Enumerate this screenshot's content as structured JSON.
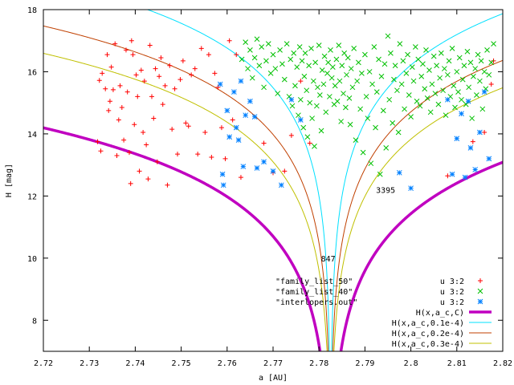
{
  "chart_data": {
    "type": "scatter",
    "title": "",
    "xlabel": "a [AU]",
    "ylabel": "H [mag]",
    "xlim": [
      2.72,
      2.82
    ],
    "ylim": [
      7,
      18
    ],
    "grid": false,
    "legend_position": "bottom-right",
    "x_ticks": [
      "2.72",
      "2.73",
      "2.74",
      "2.75",
      "2.76",
      "2.77",
      "2.78",
      "2.79",
      "2.8",
      "2.81",
      "2.82"
    ],
    "y_ticks": [
      "8",
      "10",
      "12",
      "14",
      "16",
      "18"
    ],
    "legend": [
      {
        "label": "u 3:2",
        "color": "#ff0000",
        "marker": "plus"
      },
      {
        "label": "u 3:2",
        "color": "#00c000",
        "marker": "cross"
      },
      {
        "label": "u 3:2",
        "color": "#0080ff",
        "marker": "star"
      },
      {
        "label": "H(x,a_c,C)",
        "color": "#c000c0",
        "marker": "line"
      },
      {
        "label": "H(x,a_c,0.1e-4)",
        "color": "#00e0ff",
        "marker": "line"
      },
      {
        "label": "H(x,a_c,0.2e-4)",
        "color": "#c04000",
        "marker": "line"
      },
      {
        "label": "H(x,a_c,0.3e-4)",
        "color": "#c0c000",
        "marker": "line"
      }
    ],
    "file_labels": [
      "\"family_list_50\"",
      "\"family_list_40\"",
      "\"interlopers.out\""
    ],
    "annotations": [
      {
        "text": "847",
        "x": 2.782,
        "y": 10.0
      },
      {
        "text": "3395",
        "x": 2.7945,
        "y": 12.2
      }
    ],
    "curves": {
      "center_a": 2.7825,
      "magenta_C": 9.05e-05,
      "cyan_C": 1e-05,
      "orange_C": 2e-05,
      "yellow_C": 3e-05
    },
    "series": [
      {
        "name": "u 3:2",
        "color": "#ff0000",
        "marker": "plus",
        "points": [
          [
            2.7318,
            13.75
          ],
          [
            2.7325,
            13.45
          ],
          [
            2.7322,
            15.72
          ],
          [
            2.7328,
            15.95
          ],
          [
            2.7335,
            15.45
          ],
          [
            2.7339,
            16.55
          ],
          [
            2.7342,
            14.75
          ],
          [
            2.7345,
            15.05
          ],
          [
            2.7348,
            16.15
          ],
          [
            2.7352,
            15.42
          ],
          [
            2.7356,
            16.9
          ],
          [
            2.736,
            13.3
          ],
          [
            2.7364,
            14.45
          ],
          [
            2.7367,
            15.55
          ],
          [
            2.7371,
            14.85
          ],
          [
            2.7375,
            13.8
          ],
          [
            2.738,
            16.7
          ],
          [
            2.7383,
            15.35
          ],
          [
            2.7387,
            13.4
          ],
          [
            2.739,
            12.4
          ],
          [
            2.7392,
            17.0
          ],
          [
            2.7395,
            16.55
          ],
          [
            2.7398,
            14.3
          ],
          [
            2.7402,
            15.9
          ],
          [
            2.7405,
            15.2
          ],
          [
            2.7409,
            12.8
          ],
          [
            2.7413,
            16.05
          ],
          [
            2.7417,
            14.05
          ],
          [
            2.742,
            15.7
          ],
          [
            2.7424,
            13.65
          ],
          [
            2.7428,
            12.55
          ],
          [
            2.7432,
            16.85
          ],
          [
            2.7436,
            15.2
          ],
          [
            2.744,
            14.5
          ],
          [
            2.7444,
            16.1
          ],
          [
            2.7448,
            13.1
          ],
          [
            2.7452,
            15.85
          ],
          [
            2.7456,
            16.45
          ],
          [
            2.746,
            14.95
          ],
          [
            2.7465,
            15.55
          ],
          [
            2.747,
            12.35
          ],
          [
            2.7475,
            16.2
          ],
          [
            2.748,
            14.15
          ],
          [
            2.7486,
            15.45
          ],
          [
            2.7492,
            13.35
          ],
          [
            2.7498,
            15.75
          ],
          [
            2.7504,
            16.35
          ],
          [
            2.751,
            14.35
          ],
          [
            2.7516,
            14.25
          ],
          [
            2.7522,
            15.9
          ],
          [
            2.753,
            16.1
          ],
          [
            2.7536,
            13.35
          ],
          [
            2.7544,
            16.75
          ],
          [
            2.7552,
            14.05
          ],
          [
            2.756,
            16.55
          ],
          [
            2.7566,
            13.25
          ],
          [
            2.7573,
            15.95
          ],
          [
            2.758,
            15.5
          ],
          [
            2.7588,
            14.2
          ],
          [
            2.7596,
            13.2
          ],
          [
            2.7605,
            17.0
          ],
          [
            2.7612,
            14.45
          ],
          [
            2.762,
            16.55
          ],
          [
            2.763,
            12.6
          ],
          [
            2.768,
            13.7
          ],
          [
            2.77,
            12.75
          ],
          [
            2.7725,
            12.8
          ],
          [
            2.774,
            13.95
          ],
          [
            2.776,
            15.7
          ],
          [
            2.778,
            13.7
          ],
          [
            2.808,
            12.65
          ],
          [
            2.8135,
            13.75
          ],
          [
            2.816,
            14.05
          ],
          [
            2.8175,
            15.6
          ],
          [
            2.818,
            16.35
          ]
        ]
      },
      {
        "name": "u 3:2",
        "color": "#00c000",
        "marker": "cross",
        "points": [
          [
            2.7632,
            16.4
          ],
          [
            2.764,
            16.95
          ],
          [
            2.7645,
            16.1
          ],
          [
            2.765,
            16.7
          ],
          [
            2.7655,
            15.8
          ],
          [
            2.766,
            16.45
          ],
          [
            2.7665,
            17.05
          ],
          [
            2.767,
            16.2
          ],
          [
            2.7675,
            16.8
          ],
          [
            2.768,
            15.5
          ],
          [
            2.7685,
            16.35
          ],
          [
            2.769,
            16.9
          ],
          [
            2.7695,
            15.95
          ],
          [
            2.77,
            16.55
          ],
          [
            2.7705,
            16.1
          ],
          [
            2.771,
            15.3
          ],
          [
            2.7715,
            16.7
          ],
          [
            2.772,
            16.25
          ],
          [
            2.7725,
            15.75
          ],
          [
            2.773,
            16.9
          ],
          [
            2.7735,
            15.2
          ],
          [
            2.7738,
            16.4
          ],
          [
            2.7742,
            14.9
          ],
          [
            2.7745,
            16.6
          ],
          [
            2.7748,
            15.55
          ],
          [
            2.7752,
            16.15
          ],
          [
            2.7755,
            14.6
          ],
          [
            2.7758,
            16.8
          ],
          [
            2.776,
            15.1
          ],
          [
            2.7763,
            16.35
          ],
          [
            2.7766,
            14.2
          ],
          [
            2.7768,
            15.85
          ],
          [
            2.777,
            16.6
          ],
          [
            2.7773,
            15.4
          ],
          [
            2.7775,
            13.9
          ],
          [
            2.7778,
            16.2
          ],
          [
            2.778,
            15.0
          ],
          [
            2.7783,
            16.75
          ],
          [
            2.7785,
            14.5
          ],
          [
            2.7788,
            15.7
          ],
          [
            2.779,
            13.6
          ],
          [
            2.7792,
            16.3
          ],
          [
            2.7795,
            14.9
          ],
          [
            2.7797,
            15.5
          ],
          [
            2.78,
            16.85
          ],
          [
            2.7802,
            15.25
          ],
          [
            2.7805,
            14.1
          ],
          [
            2.7807,
            16.05
          ],
          [
            2.781,
            15.6
          ],
          [
            2.7812,
            16.5
          ],
          [
            2.7815,
            14.7
          ],
          [
            2.7818,
            15.95
          ],
          [
            2.782,
            16.3
          ],
          [
            2.7823,
            15.2
          ],
          [
            2.7825,
            16.7
          ],
          [
            2.7828,
            15.8
          ],
          [
            2.783,
            16.15
          ],
          [
            2.7833,
            14.95
          ],
          [
            2.7835,
            15.55
          ],
          [
            2.7838,
            16.4
          ],
          [
            2.784,
            15.05
          ],
          [
            2.7843,
            16.85
          ],
          [
            2.7845,
            15.7
          ],
          [
            2.7848,
            14.4
          ],
          [
            2.785,
            16.2
          ],
          [
            2.7853,
            15.3
          ],
          [
            2.7855,
            16.6
          ],
          [
            2.7858,
            14.85
          ],
          [
            2.786,
            15.9
          ],
          [
            2.7863,
            16.45
          ],
          [
            2.7866,
            15.15
          ],
          [
            2.7868,
            14.3
          ],
          [
            2.787,
            16.1
          ],
          [
            2.7873,
            15.5
          ],
          [
            2.7876,
            16.75
          ],
          [
            2.788,
            13.8
          ],
          [
            2.7883,
            15.7
          ],
          [
            2.7886,
            16.3
          ],
          [
            2.789,
            14.8
          ],
          [
            2.7893,
            15.95
          ],
          [
            2.7896,
            13.4
          ],
          [
            2.79,
            16.55
          ],
          [
            2.7903,
            15.2
          ],
          [
            2.7906,
            14.5
          ],
          [
            2.791,
            16.0
          ],
          [
            2.7913,
            13.05
          ],
          [
            2.7916,
            15.6
          ],
          [
            2.792,
            16.8
          ],
          [
            2.7923,
            14.2
          ],
          [
            2.7926,
            15.35
          ],
          [
            2.793,
            16.4
          ],
          [
            2.7933,
            12.7
          ],
          [
            2.7936,
            15.85
          ],
          [
            2.794,
            14.75
          ],
          [
            2.7943,
            16.25
          ],
          [
            2.7946,
            13.55
          ],
          [
            2.795,
            17.15
          ],
          [
            2.7953,
            15.1
          ],
          [
            2.7956,
            16.6
          ],
          [
            2.796,
            14.35
          ],
          [
            2.7963,
            15.75
          ],
          [
            2.7966,
            16.2
          ],
          [
            2.797,
            15.4
          ],
          [
            2.7973,
            14.05
          ],
          [
            2.7976,
            16.9
          ],
          [
            2.798,
            15.6
          ],
          [
            2.7983,
            16.35
          ],
          [
            2.7986,
            14.8
          ],
          [
            2.799,
            15.95
          ],
          [
            2.7993,
            16.55
          ],
          [
            2.7996,
            15.25
          ],
          [
            2.8,
            14.55
          ],
          [
            2.8003,
            16.15
          ],
          [
            2.8006,
            15.7
          ],
          [
            2.801,
            16.8
          ],
          [
            2.8013,
            15.05
          ],
          [
            2.8016,
            16.4
          ],
          [
            2.802,
            14.9
          ],
          [
            2.8023,
            15.85
          ],
          [
            2.8026,
            16.25
          ],
          [
            2.803,
            15.45
          ],
          [
            2.8033,
            16.7
          ],
          [
            2.8036,
            15.15
          ],
          [
            2.804,
            16.05
          ],
          [
            2.8043,
            14.7
          ],
          [
            2.8046,
            15.6
          ],
          [
            2.805,
            16.5
          ],
          [
            2.8053,
            15.3
          ],
          [
            2.8056,
            16.2
          ],
          [
            2.806,
            14.95
          ],
          [
            2.8063,
            15.8
          ],
          [
            2.8066,
            16.6
          ],
          [
            2.807,
            15.4
          ],
          [
            2.8073,
            16.1
          ],
          [
            2.8076,
            14.6
          ],
          [
            2.808,
            15.9
          ],
          [
            2.8083,
            16.35
          ],
          [
            2.8086,
            15.2
          ],
          [
            2.809,
            16.75
          ],
          [
            2.8093,
            15.55
          ],
          [
            2.8096,
            14.85
          ],
          [
            2.81,
            16.0
          ],
          [
            2.8103,
            15.35
          ],
          [
            2.8106,
            16.45
          ],
          [
            2.811,
            15.1
          ],
          [
            2.8113,
            15.75
          ],
          [
            2.8116,
            16.2
          ],
          [
            2.812,
            14.95
          ],
          [
            2.8123,
            16.65
          ],
          [
            2.8126,
            15.5
          ],
          [
            2.813,
            16.3
          ],
          [
            2.8133,
            14.5
          ],
          [
            2.8136,
            15.85
          ],
          [
            2.814,
            16.1
          ],
          [
            2.8143,
            15.25
          ],
          [
            2.8146,
            16.55
          ],
          [
            2.815,
            15.7
          ],
          [
            2.8153,
            16.35
          ],
          [
            2.8156,
            14.8
          ],
          [
            2.816,
            16.0
          ],
          [
            2.8163,
            15.45
          ],
          [
            2.8166,
            16.7
          ],
          [
            2.817,
            15.9
          ],
          [
            2.8175,
            16.3
          ],
          [
            2.818,
            16.9
          ]
        ]
      },
      {
        "name": "u 3:2",
        "color": "#0080ff",
        "marker": "star",
        "points": [
          [
            2.7585,
            15.6
          ],
          [
            2.759,
            12.7
          ],
          [
            2.7592,
            12.35
          ],
          [
            2.76,
            14.75
          ],
          [
            2.7605,
            13.9
          ],
          [
            2.7615,
            15.35
          ],
          [
            2.762,
            14.2
          ],
          [
            2.7625,
            13.8
          ],
          [
            2.763,
            15.7
          ],
          [
            2.7635,
            12.95
          ],
          [
            2.764,
            14.6
          ],
          [
            2.765,
            15.05
          ],
          [
            2.766,
            14.55
          ],
          [
            2.7665,
            12.9
          ],
          [
            2.768,
            13.1
          ],
          [
            2.77,
            12.8
          ],
          [
            2.7718,
            12.35
          ],
          [
            2.774,
            15.1
          ],
          [
            2.776,
            14.45
          ],
          [
            2.7975,
            12.75
          ],
          [
            2.8,
            12.25
          ],
          [
            2.808,
            15.1
          ],
          [
            2.809,
            12.7
          ],
          [
            2.81,
            13.85
          ],
          [
            2.811,
            14.65
          ],
          [
            2.8118,
            12.6
          ],
          [
            2.8125,
            15.05
          ],
          [
            2.813,
            13.55
          ],
          [
            2.814,
            12.85
          ],
          [
            2.815,
            14.05
          ],
          [
            2.816,
            15.35
          ],
          [
            2.817,
            13.2
          ]
        ]
      }
    ]
  }
}
